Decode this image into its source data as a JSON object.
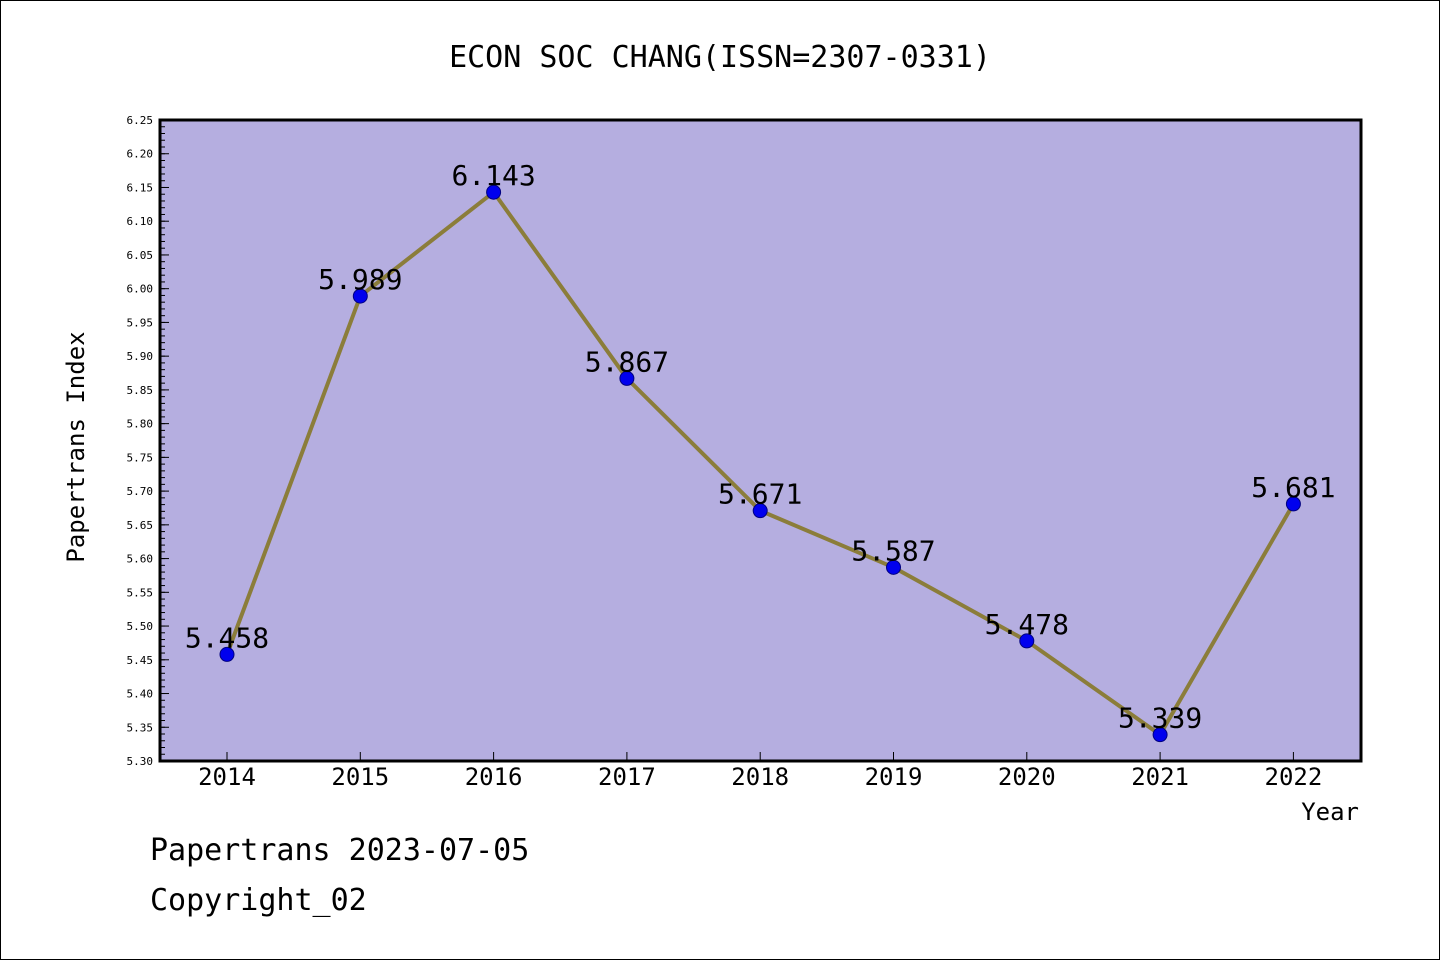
{
  "chart_data": {
    "type": "line",
    "title": "ECON SOC CHANG(ISSN=2307-0331)",
    "xlabel": "Year",
    "ylabel": "Papertrans Index",
    "categories": [
      "2014",
      "2015",
      "2016",
      "2017",
      "2018",
      "2019",
      "2020",
      "2021",
      "2022"
    ],
    "series": [
      {
        "values": [
          5.458,
          5.989,
          6.143,
          5.867,
          5.671,
          5.587,
          5.478,
          5.339,
          5.681
        ]
      }
    ],
    "data_labels": [
      "5.458",
      "5.989",
      "6.143",
      "5.867",
      "5.671",
      "5.587",
      "5.478",
      "5.339",
      "5.681"
    ],
    "ylim": [
      5.3,
      6.25
    ],
    "y_ticks": [
      "5.30",
      "5.35",
      "5.40",
      "5.45",
      "5.50",
      "5.55",
      "5.60",
      "5.65",
      "5.70",
      "5.75",
      "5.80",
      "5.85",
      "5.90",
      "5.95",
      "6.00",
      "6.05",
      "6.10",
      "6.15",
      "6.20",
      "6.25"
    ],
    "grid": false,
    "legend": "none",
    "colors": {
      "plot_background": "#b5aee0",
      "line": "#8b7d3a",
      "marker_fill": "#0000ee",
      "marker_edge": "#000080",
      "axis": "#000000"
    }
  },
  "footer": {
    "date_line": "Papertrans 2023-07-05",
    "copyright_line": "Copyright_02"
  }
}
